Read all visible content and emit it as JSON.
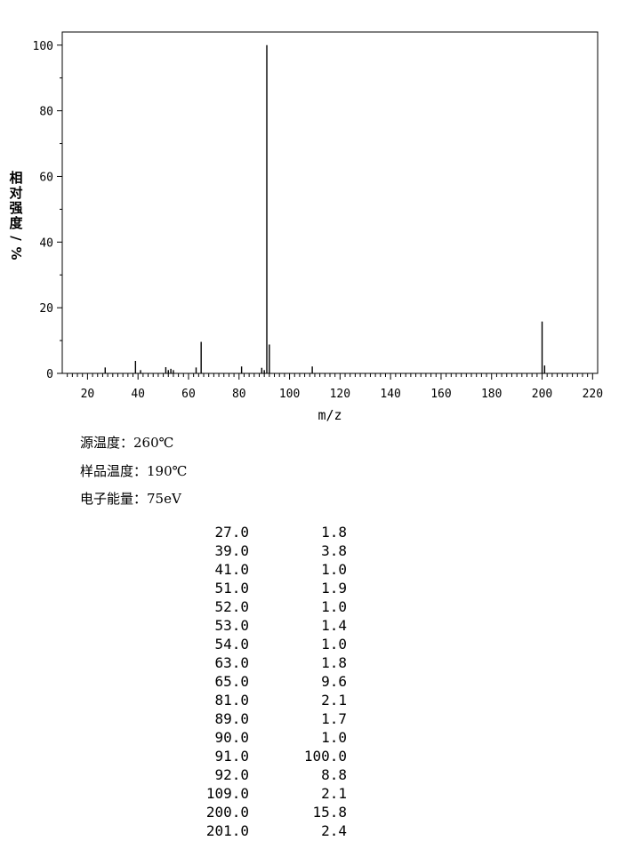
{
  "chart_data": {
    "type": "bar",
    "xlabel": "m/z",
    "ylabel": "相对强度/%",
    "xlim": [
      10,
      222
    ],
    "ylim": [
      0,
      104
    ],
    "x_ticks": [
      20,
      40,
      60,
      80,
      100,
      120,
      140,
      160,
      180,
      200,
      220
    ],
    "y_ticks": [
      0,
      20,
      40,
      60,
      80,
      100
    ],
    "peaks": [
      {
        "mz": 27.0,
        "intensity": 1.8
      },
      {
        "mz": 39.0,
        "intensity": 3.8
      },
      {
        "mz": 41.0,
        "intensity": 1.0
      },
      {
        "mz": 51.0,
        "intensity": 1.9
      },
      {
        "mz": 52.0,
        "intensity": 1.0
      },
      {
        "mz": 53.0,
        "intensity": 1.4
      },
      {
        "mz": 54.0,
        "intensity": 1.0
      },
      {
        "mz": 63.0,
        "intensity": 1.8
      },
      {
        "mz": 65.0,
        "intensity": 9.6
      },
      {
        "mz": 81.0,
        "intensity": 2.1
      },
      {
        "mz": 89.0,
        "intensity": 1.7
      },
      {
        "mz": 90.0,
        "intensity": 1.0
      },
      {
        "mz": 91.0,
        "intensity": 100.0
      },
      {
        "mz": 92.0,
        "intensity": 8.8
      },
      {
        "mz": 109.0,
        "intensity": 2.1
      },
      {
        "mz": 200.0,
        "intensity": 15.8
      },
      {
        "mz": 201.0,
        "intensity": 2.4
      }
    ]
  },
  "conditions": {
    "source_temp": "源温度：260℃",
    "sample_temp": "样品温度：190℃",
    "electron_energy": "电子能量：75eV"
  },
  "table": [
    [
      "27.0",
      "1.8"
    ],
    [
      "39.0",
      "3.8"
    ],
    [
      "41.0",
      "1.0"
    ],
    [
      "51.0",
      "1.9"
    ],
    [
      "52.0",
      "1.0"
    ],
    [
      "53.0",
      "1.4"
    ],
    [
      "54.0",
      "1.0"
    ],
    [
      "63.0",
      "1.8"
    ],
    [
      "65.0",
      "9.6"
    ],
    [
      "81.0",
      "2.1"
    ],
    [
      "89.0",
      "1.7"
    ],
    [
      "90.0",
      "1.0"
    ],
    [
      "91.0",
      "100.0"
    ],
    [
      "92.0",
      "8.8"
    ],
    [
      "109.0",
      "2.1"
    ],
    [
      "200.0",
      "15.8"
    ],
    [
      "201.0",
      "2.4"
    ]
  ]
}
